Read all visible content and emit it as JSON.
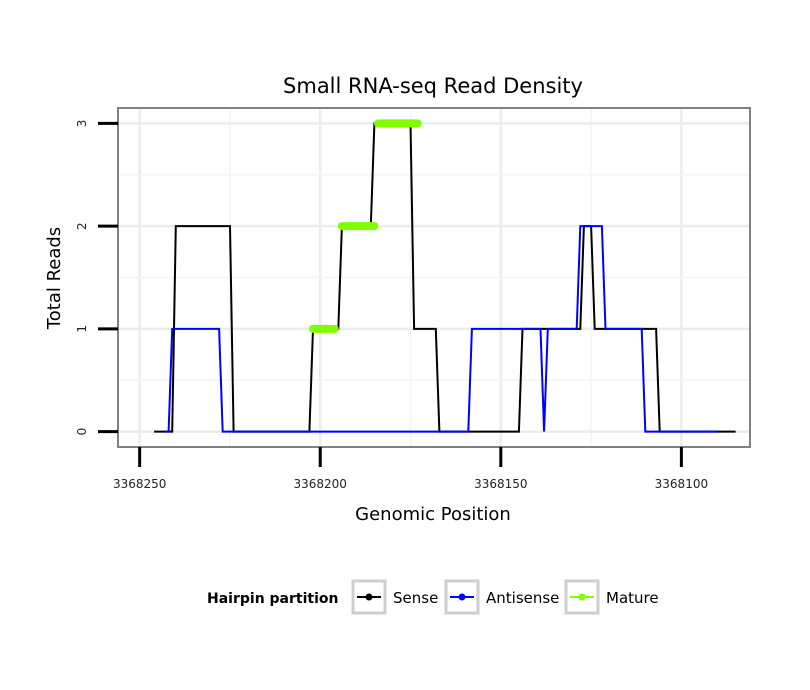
{
  "chart_data": {
    "type": "line",
    "title": "Small RNA-seq Read Density",
    "xlabel": "Genomic Position",
    "ylabel": "Total Reads",
    "xlim": [
      3368256,
      3368081
    ],
    "ylim": [
      -0.15,
      3.15
    ],
    "x_reversed": true,
    "x_ticks": [
      3368250,
      3368200,
      3368150,
      3368100
    ],
    "x_tick_labels": [
      "3368250",
      "3368200",
      "3368150",
      "3368100"
    ],
    "y_ticks": [
      0,
      1,
      2,
      3
    ],
    "y_tick_labels": [
      "0",
      "1",
      "2",
      "3"
    ],
    "grid": true,
    "legend": {
      "title": "Hairpin partition",
      "placement": "bottom",
      "entries": [
        {
          "name": "Sense",
          "color": "#000000"
        },
        {
          "name": "Antisense",
          "color": "#0000ff"
        },
        {
          "name": "Mature",
          "color": "#7fff00"
        }
      ]
    },
    "series": [
      {
        "name": "Sense",
        "color": "#000000",
        "x": [
          3368246,
          3368241,
          3368240,
          3368225,
          3368224,
          3368203,
          3368202,
          3368195,
          3368194,
          3368186,
          3368185,
          3368175,
          3368174,
          3368168,
          3368167,
          3368160,
          3368159,
          3368146,
          3368145,
          3368144,
          3368128,
          3368127,
          3368125,
          3368124,
          3368120,
          3368119,
          3368107,
          3368106,
          3368085
        ],
        "y": [
          0,
          0,
          2,
          2,
          0,
          0,
          1,
          1,
          2,
          2,
          3,
          3,
          1,
          1,
          0,
          0,
          0,
          0,
          0,
          1,
          1,
          2,
          2,
          1,
          1,
          1,
          1,
          0,
          0
        ]
      },
      {
        "name": "Antisense",
        "color": "#0000ff",
        "x": [
          3368243,
          3368242,
          3368241,
          3368228,
          3368227,
          3368223,
          3368159,
          3368158,
          3368139,
          3368138,
          3368137,
          3368129,
          3368128,
          3368122,
          3368121,
          3368111,
          3368110,
          3368090
        ],
        "y": [
          0,
          0,
          1,
          1,
          0,
          0,
          0,
          1,
          1,
          0,
          1,
          1,
          2,
          2,
          1,
          1,
          0,
          0
        ]
      },
      {
        "name": "Mature",
        "color": "#7fff00",
        "segments": [
          {
            "x": [
              3368202,
              3368196
            ],
            "y": [
              1,
              1
            ]
          },
          {
            "x": [
              3368194,
              3368185
            ],
            "y": [
              2,
              2
            ]
          },
          {
            "x": [
              3368184,
              3368173
            ],
            "y": [
              3,
              3
            ]
          }
        ]
      }
    ]
  }
}
